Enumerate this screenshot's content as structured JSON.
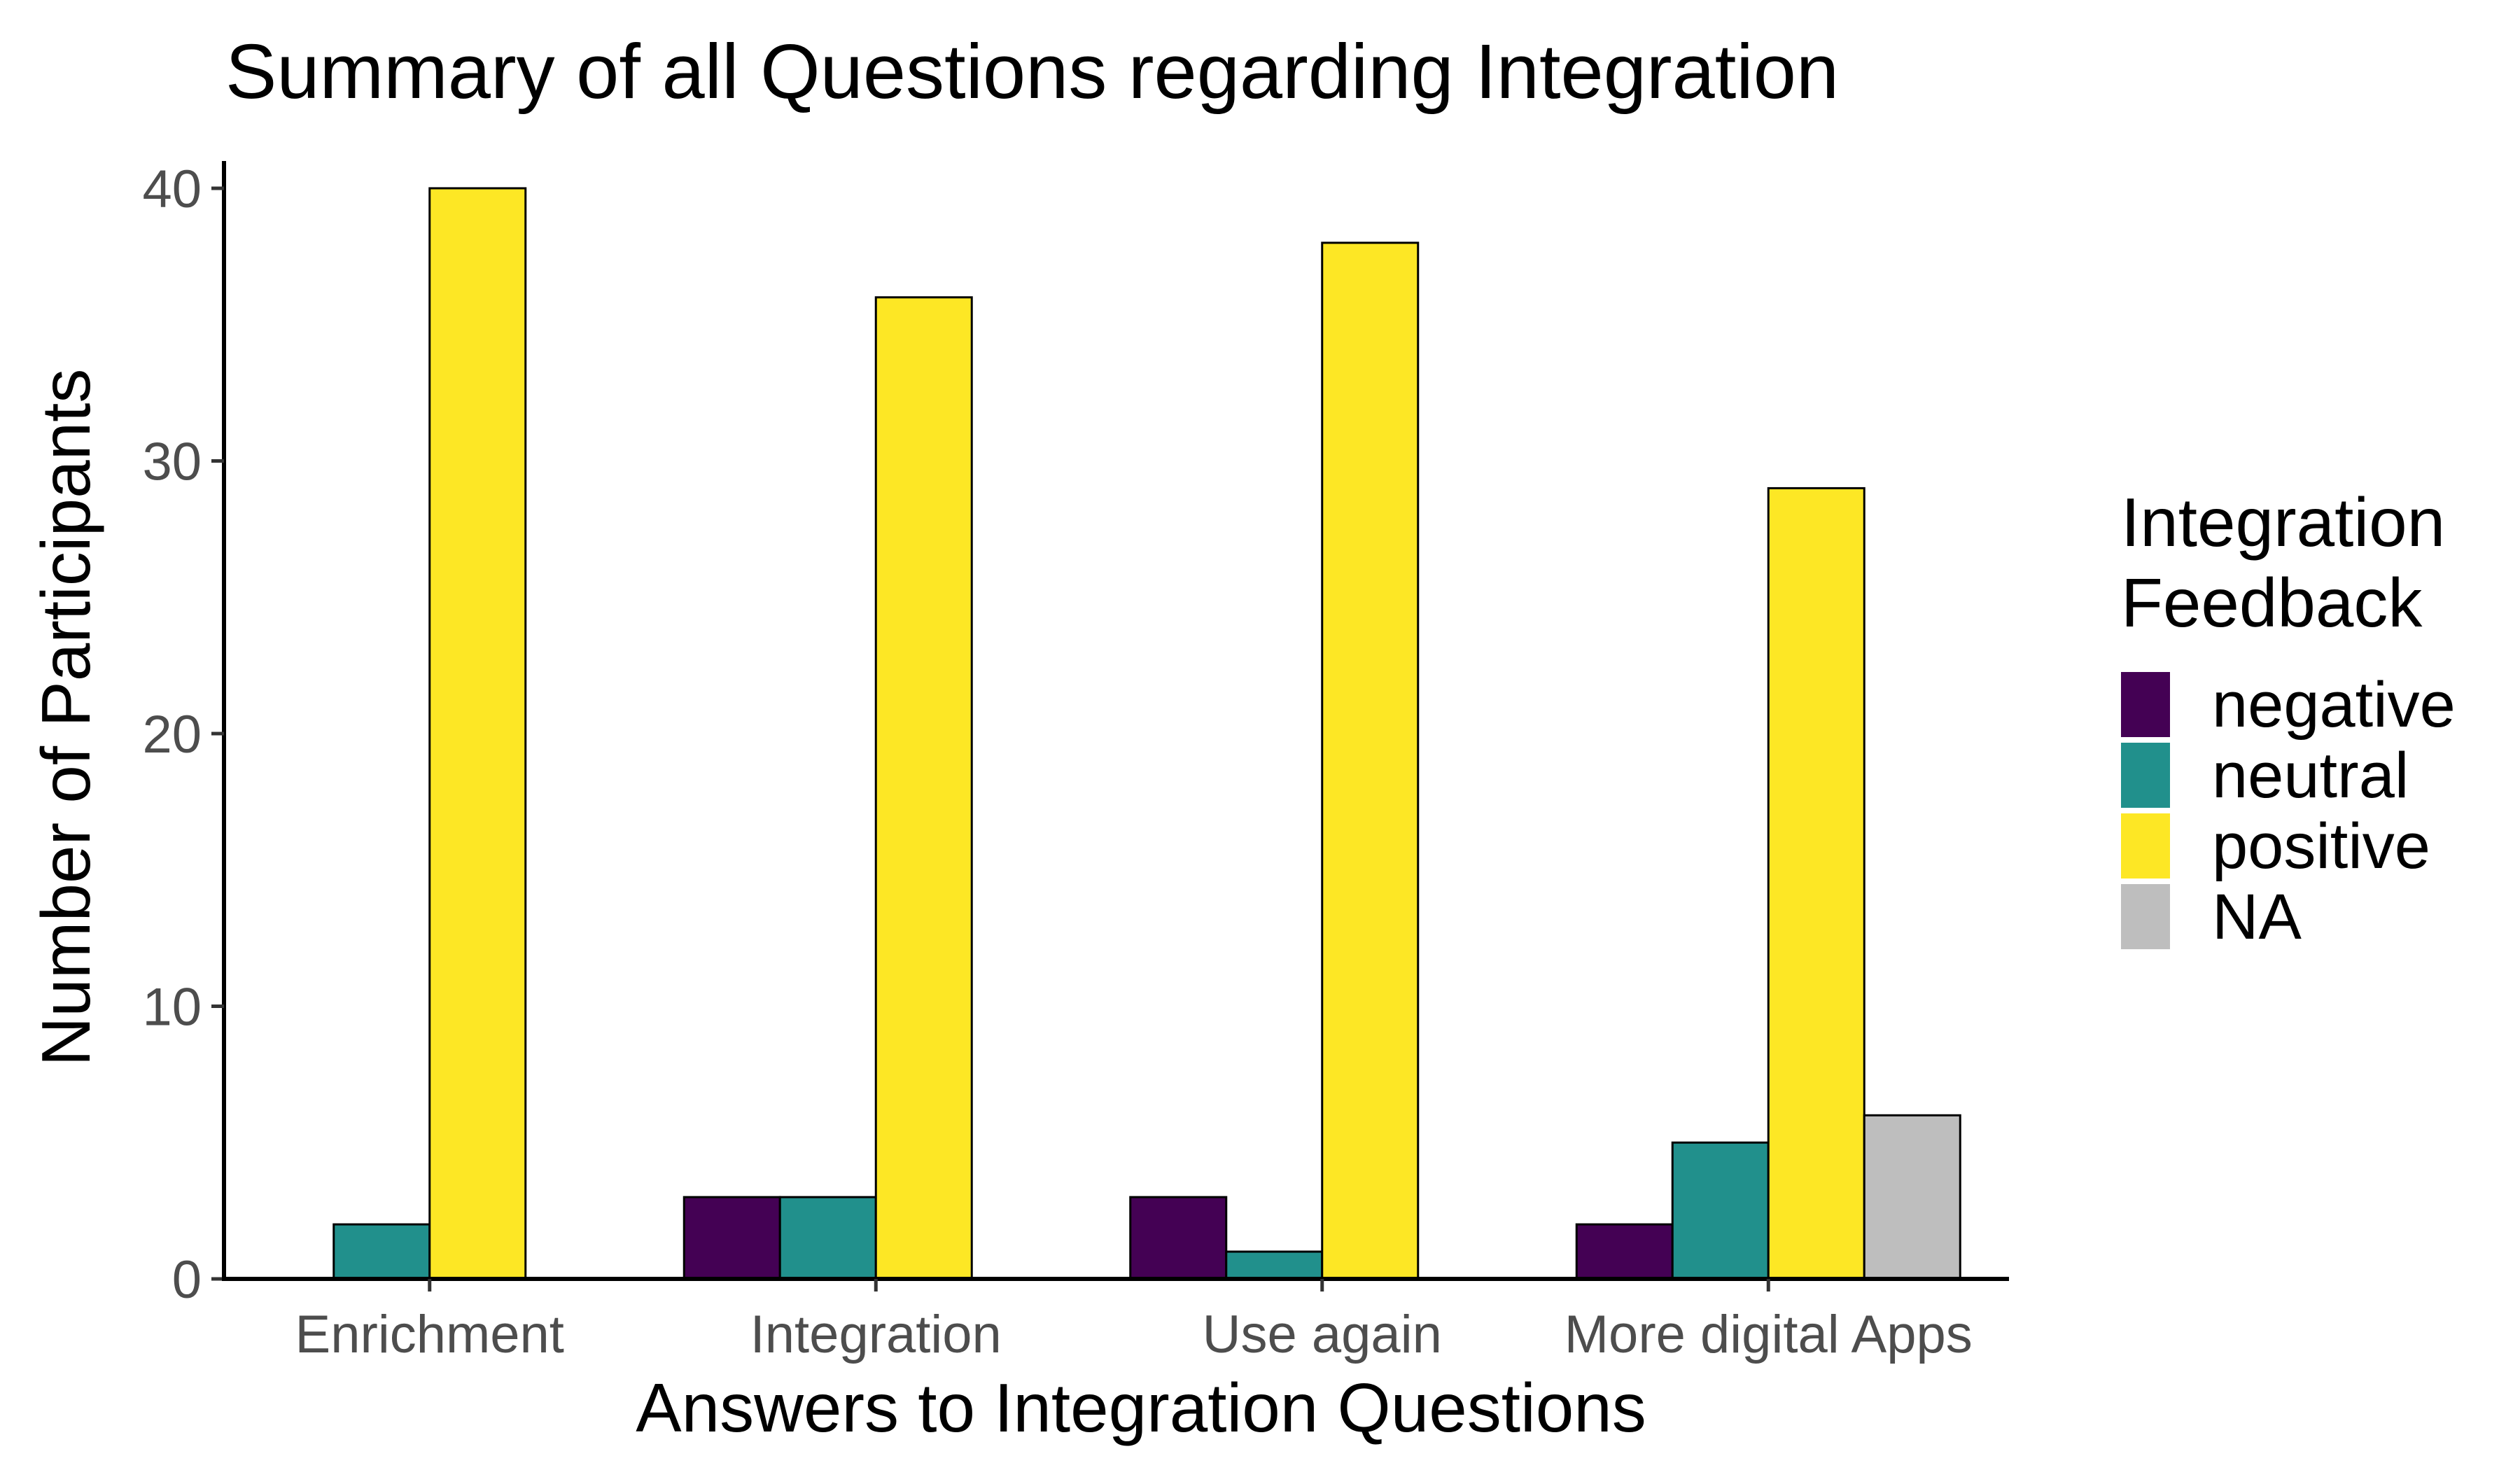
{
  "chart_data": {
    "type": "bar",
    "title": "Summary of all Questions regarding Integration",
    "xlabel": "Answers to Integration Questions",
    "ylabel": "Number of Participants",
    "categories": [
      "Enrichment",
      "Integration",
      "Use again",
      "More digital Apps"
    ],
    "series": [
      {
        "name": "negative",
        "color": "#440154",
        "values": [
          0,
          3,
          3,
          2
        ]
      },
      {
        "name": "neutral",
        "color": "#21908C",
        "values": [
          2,
          3,
          1,
          5
        ]
      },
      {
        "name": "positive",
        "color": "#FDE725",
        "values": [
          40,
          36,
          38,
          29
        ]
      },
      {
        "name": "NA",
        "color": "#BEBEBE",
        "values": [
          0,
          0,
          0,
          6
        ]
      }
    ],
    "ylim": [
      0,
      41
    ],
    "yticks": [
      0,
      10,
      20,
      30,
      40
    ],
    "grid": false,
    "legend": {
      "title_lines": [
        "Integration",
        "Feedback"
      ],
      "position": "right"
    }
  }
}
